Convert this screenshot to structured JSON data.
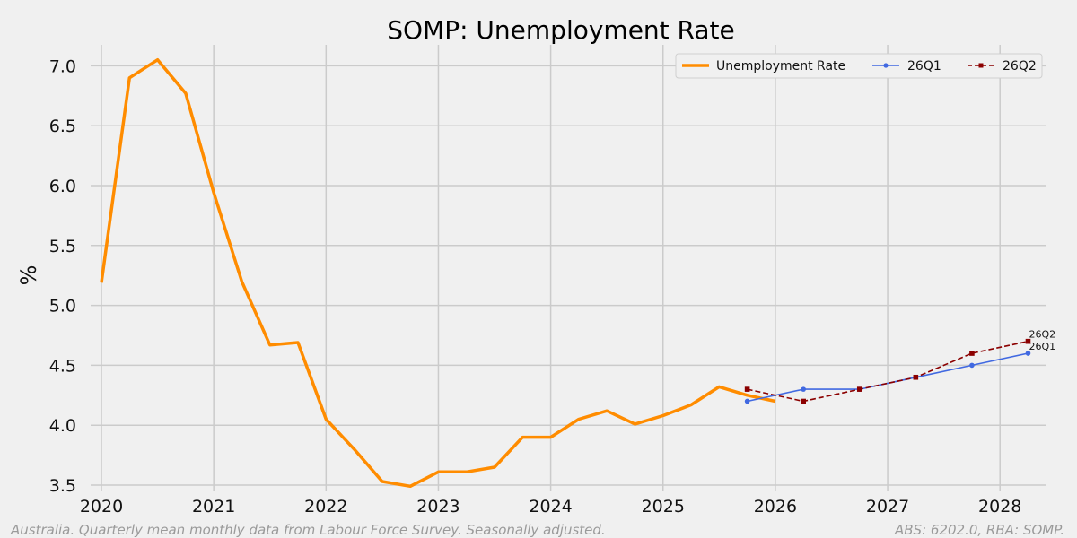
{
  "chart_data": {
    "type": "line",
    "title": "SOMP: Unemployment Rate",
    "xlabel": "",
    "ylabel": "%",
    "xlim": [
      2020,
      2028.35
    ],
    "ylim": [
      3.45,
      7.2
    ],
    "x_ticks": [
      2020,
      2021,
      2022,
      2023,
      2024,
      2025,
      2026,
      2027,
      2028
    ],
    "y_ticks": [
      3.5,
      4.0,
      4.5,
      5.0,
      5.5,
      6.0,
      6.5,
      7.0
    ],
    "y_tick_labels": [
      "3.5",
      "4.0",
      "4.5",
      "5.0",
      "5.5",
      "6.0",
      "6.5",
      "7.0"
    ],
    "grid": true,
    "legend_position": "top-right",
    "series": [
      {
        "name": "Unemployment Rate",
        "color": "#ff8c00",
        "style": "solid",
        "x": [
          2020.0,
          2020.25,
          2020.5,
          2020.75,
          2021.0,
          2021.25,
          2021.5,
          2021.75,
          2022.0,
          2022.25,
          2022.5,
          2022.75,
          2023.0,
          2023.25,
          2023.5,
          2023.75,
          2024.0,
          2024.25,
          2024.5,
          2024.75,
          2025.0,
          2025.25,
          2025.5,
          2025.75,
          2026.0
        ],
        "values": [
          5.19,
          6.9,
          7.05,
          6.77,
          5.94,
          5.2,
          4.67,
          4.69,
          4.05,
          3.8,
          3.53,
          3.49,
          3.61,
          3.61,
          3.65,
          3.9,
          3.9,
          4.05,
          4.12,
          4.01,
          4.08,
          4.17,
          4.32,
          4.25,
          4.2
        ]
      },
      {
        "name": "26Q1",
        "color": "#4169e1",
        "style": "solid-dot",
        "x": [
          2025.75,
          2026.25,
          2026.75,
          2027.25,
          2027.75,
          2028.25
        ],
        "values": [
          4.2,
          4.3,
          4.3,
          4.4,
          4.5,
          4.6
        ],
        "end_label": "26Q1"
      },
      {
        "name": "26Q2",
        "color": "#8b0000",
        "style": "dashed-square",
        "x": [
          2025.75,
          2026.25,
          2026.75,
          2027.25,
          2027.75,
          2028.25
        ],
        "values": [
          4.3,
          4.2,
          4.3,
          4.4,
          4.6,
          4.7
        ],
        "end_label": "26Q2"
      }
    ]
  },
  "footer": {
    "left": "Australia. Quarterly mean monthly data from Labour Force Survey. Seasonally adjusted.",
    "right": "ABS: 6202.0, RBA: SOMP."
  }
}
